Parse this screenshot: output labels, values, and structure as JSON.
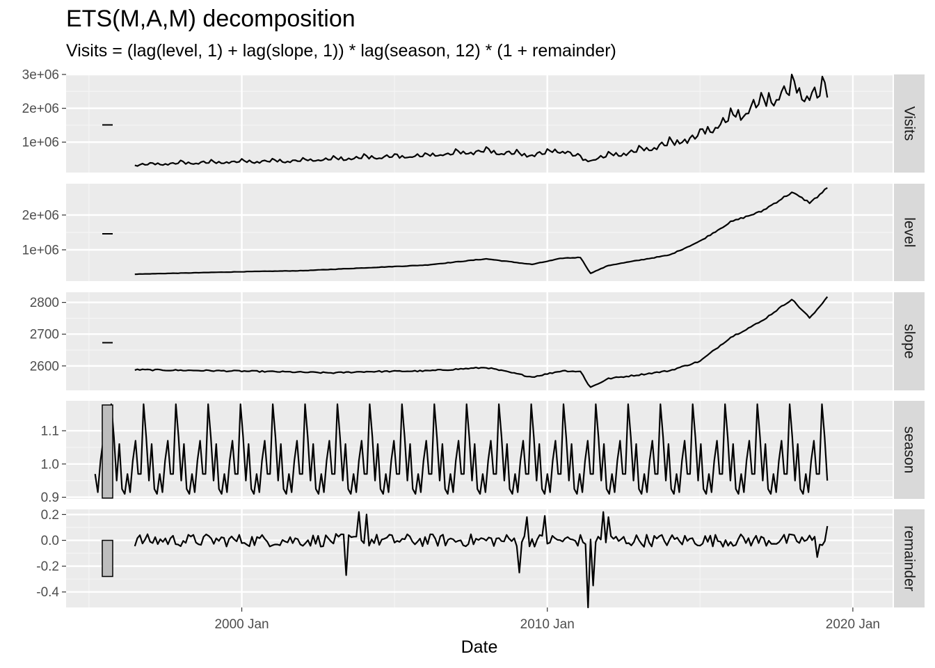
{
  "chart_data": {
    "type": "line",
    "title": "ETS(M,A,M) decomposition",
    "subtitle": "Visits = (lag(level, 1) + lag(slope, 1)) * lag(season, 12) * (1 + remainder)",
    "xlabel": "Date",
    "x_ticks": [
      "2000 Jan",
      "2010 Jan",
      "2020 Jan"
    ],
    "x_start": "1996 Jun",
    "x_end": "2019 Dec",
    "facets": [
      {
        "name": "Visits",
        "ylim": [
          100000,
          3000000
        ],
        "y_ticks": [
          {
            "value": 1000000,
            "label": "1e+06"
          },
          {
            "value": 2000000,
            "label": "2e+06"
          },
          {
            "value": 3000000,
            "label": "3e+06"
          }
        ],
        "scale_bar_value": 0,
        "knots": [
          [
            1996.5,
            320000
          ],
          [
            1998,
            380000
          ],
          [
            2000,
            420000
          ],
          [
            2002,
            460000
          ],
          [
            2004,
            540000
          ],
          [
            2006,
            600000
          ],
          [
            2008,
            740000
          ],
          [
            2009.3,
            620000
          ],
          [
            2010.5,
            760000
          ],
          [
            2011.3,
            450000
          ],
          [
            2012,
            600000
          ],
          [
            2013,
            750000
          ],
          [
            2014,
            950000
          ],
          [
            2015,
            1200000
          ],
          [
            2016,
            1700000
          ],
          [
            2017,
            2150000
          ],
          [
            2018,
            2550000
          ],
          [
            2018.7,
            2450000
          ],
          [
            2019.2,
            2500000
          ]
        ],
        "seasonal_amp": 0.12,
        "noise_amp": 0.04
      },
      {
        "name": "level",
        "ylim": [
          100000,
          2900000
        ],
        "y_ticks": [
          {
            "value": 1000000,
            "label": "1e+06"
          },
          {
            "value": 2000000,
            "label": "2e+06"
          }
        ],
        "scale_bar_value": 0,
        "knots": [
          [
            1996.5,
            300000
          ],
          [
            1998,
            330000
          ],
          [
            2000,
            370000
          ],
          [
            2002,
            400000
          ],
          [
            2004,
            480000
          ],
          [
            2006,
            560000
          ],
          [
            2008,
            740000
          ],
          [
            2009.5,
            580000
          ],
          [
            2010.5,
            760000
          ],
          [
            2011.1,
            780000
          ],
          [
            2011.4,
            320000
          ],
          [
            2012,
            550000
          ],
          [
            2013,
            700000
          ],
          [
            2014,
            850000
          ],
          [
            2015,
            1250000
          ],
          [
            2016,
            1800000
          ],
          [
            2017,
            2100000
          ],
          [
            2018,
            2650000
          ],
          [
            2018.6,
            2350000
          ],
          [
            2019.2,
            2800000
          ]
        ],
        "seasonal_amp": 0,
        "noise_amp": 0.012
      },
      {
        "name": "slope",
        "ylim": [
          2523,
          2832
        ],
        "y_ticks": [
          {
            "value": 2600,
            "label": "2600"
          },
          {
            "value": 2700,
            "label": "2700"
          },
          {
            "value": 2800,
            "label": "2800"
          }
        ],
        "scale_bar_value": 0,
        "knots": [
          [
            1996.5,
            2588
          ],
          [
            1999,
            2585
          ],
          [
            2001,
            2582
          ],
          [
            2003,
            2578
          ],
          [
            2004,
            2582
          ],
          [
            2006,
            2584
          ],
          [
            2008,
            2595
          ],
          [
            2009.5,
            2565
          ],
          [
            2010.5,
            2585
          ],
          [
            2011.1,
            2582
          ],
          [
            2011.4,
            2532
          ],
          [
            2012,
            2560
          ],
          [
            2013,
            2572
          ],
          [
            2014,
            2585
          ],
          [
            2015,
            2615
          ],
          [
            2016,
            2690
          ],
          [
            2017,
            2740
          ],
          [
            2018,
            2810
          ],
          [
            2018.6,
            2750
          ],
          [
            2019.2,
            2822
          ]
        ],
        "seasonal_amp": 0,
        "noise_amp": 0.0008
      },
      {
        "name": "season",
        "ylim": [
          0.895,
          1.19
        ],
        "y_ticks": [
          {
            "value": 0.9,
            "label": "0.9"
          },
          {
            "value": 1.0,
            "label": "1.0"
          },
          {
            "value": 1.1,
            "label": "1.1"
          }
        ],
        "scale_bar_value": 0.28,
        "seasonal_pattern": [
          0.97,
          0.915,
          1.01,
          1.07,
          0.97,
          0.97,
          1.18,
          1.08,
          0.95,
          1.06,
          0.925,
          0.91
        ]
      },
      {
        "name": "remainder",
        "ylim": [
          -0.52,
          0.24
        ],
        "y_ticks": [
          {
            "value": -0.4,
            "label": "-0.4"
          },
          {
            "value": -0.2,
            "label": "-0.2"
          },
          {
            "value": 0.0,
            "label": "0.0"
          },
          {
            "value": 0.2,
            "label": "0.2"
          }
        ],
        "scale_bar_value": 0.28,
        "spikes": [
          [
            2003.4,
            -0.27
          ],
          [
            2003.8,
            0.22
          ],
          [
            2004.1,
            0.2
          ],
          [
            2009.1,
            -0.25
          ],
          [
            2009.3,
            0.18
          ],
          [
            2009.9,
            0.19
          ],
          [
            2011.3,
            -0.52
          ],
          [
            2011.5,
            -0.35
          ],
          [
            2011.8,
            0.22
          ],
          [
            2012.0,
            0.18
          ],
          [
            2018.8,
            -0.13
          ],
          [
            2019.2,
            0.11
          ]
        ],
        "noise_amp": 0.05
      }
    ]
  }
}
